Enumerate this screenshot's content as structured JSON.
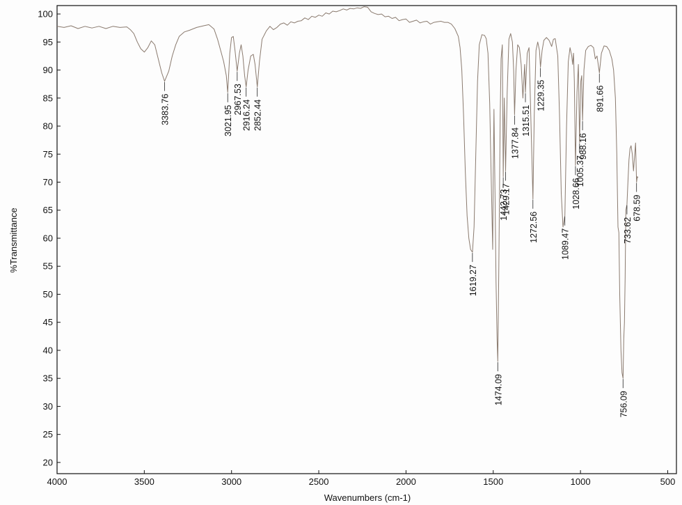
{
  "chart_data": {
    "type": "line",
    "title": "",
    "xlabel": "Wavenumbers (cm-1)",
    "ylabel": "%Transmittance",
    "xlim": [
      4000,
      450
    ],
    "ylim": [
      18,
      101.5
    ],
    "x_reversed": true,
    "grid": false,
    "line_color": "#8a7a6e",
    "x_ticks": [
      4000,
      3500,
      3000,
      2500,
      2000,
      1500,
      1000,
      500
    ],
    "y_ticks": [
      100,
      95,
      90,
      85,
      80,
      75,
      70,
      65,
      60,
      55,
      50,
      45,
      40,
      35,
      30,
      25,
      20
    ],
    "series": [
      {
        "points": [
          [
            4000,
            97.8
          ],
          [
            3960,
            97.6
          ],
          [
            3920,
            97.9
          ],
          [
            3880,
            97.4
          ],
          [
            3840,
            97.8
          ],
          [
            3800,
            97.5
          ],
          [
            3760,
            97.8
          ],
          [
            3720,
            97.4
          ],
          [
            3680,
            97.8
          ],
          [
            3640,
            97.6
          ],
          [
            3600,
            97.7
          ],
          [
            3580,
            97.2
          ],
          [
            3560,
            96.5
          ],
          [
            3540,
            95.0
          ],
          [
            3520,
            93.8
          ],
          [
            3500,
            93.2
          ],
          [
            3480,
            94.0
          ],
          [
            3460,
            95.2
          ],
          [
            3440,
            94.5
          ],
          [
            3420,
            92.0
          ],
          [
            3400,
            89.5
          ],
          [
            3383.76,
            88.0
          ],
          [
            3360,
            89.8
          ],
          [
            3340,
            92.5
          ],
          [
            3320,
            94.5
          ],
          [
            3300,
            96.0
          ],
          [
            3270,
            96.8
          ],
          [
            3240,
            97.1
          ],
          [
            3200,
            97.6
          ],
          [
            3160,
            97.9
          ],
          [
            3130,
            98.1
          ],
          [
            3100,
            97.3
          ],
          [
            3080,
            95.5
          ],
          [
            3060,
            93.2
          ],
          [
            3045,
            91.5
          ],
          [
            3030,
            89.0
          ],
          [
            3021.95,
            86.0
          ],
          [
            3010,
            93.0
          ],
          [
            3000,
            95.8
          ],
          [
            2990,
            96.0
          ],
          [
            2980,
            93.5
          ],
          [
            2967.53,
            89.8
          ],
          [
            2955,
            93.0
          ],
          [
            2945,
            94.5
          ],
          [
            2935,
            92.5
          ],
          [
            2925,
            89.0
          ],
          [
            2916.24,
            87.0
          ],
          [
            2905,
            90.0
          ],
          [
            2890,
            92.5
          ],
          [
            2875,
            92.8
          ],
          [
            2865,
            91.0
          ],
          [
            2852.44,
            87.0
          ],
          [
            2840,
            91.5
          ],
          [
            2825,
            95.5
          ],
          [
            2800,
            97.0
          ],
          [
            2780,
            97.8
          ],
          [
            2760,
            97.2
          ],
          [
            2740,
            97.6
          ],
          [
            2720,
            98.2
          ],
          [
            2700,
            98.4
          ],
          [
            2680,
            98.0
          ],
          [
            2660,
            98.6
          ],
          [
            2640,
            98.4
          ],
          [
            2620,
            98.7
          ],
          [
            2600,
            98.8
          ],
          [
            2580,
            99.3
          ],
          [
            2560,
            99.0
          ],
          [
            2540,
            99.6
          ],
          [
            2520,
            99.4
          ],
          [
            2500,
            99.8
          ],
          [
            2480,
            99.6
          ],
          [
            2460,
            100.2
          ],
          [
            2440,
            100.0
          ],
          [
            2420,
            100.5
          ],
          [
            2400,
            100.4
          ],
          [
            2380,
            100.6
          ],
          [
            2360,
            100.9
          ],
          [
            2340,
            100.7
          ],
          [
            2320,
            101.0
          ],
          [
            2300,
            100.9
          ],
          [
            2280,
            101.1
          ],
          [
            2260,
            101.0
          ],
          [
            2240,
            101.3
          ],
          [
            2220,
            101.2
          ],
          [
            2200,
            100.4
          ],
          [
            2180,
            100.1
          ],
          [
            2160,
            99.9
          ],
          [
            2140,
            100.0
          ],
          [
            2120,
            99.5
          ],
          [
            2100,
            99.6
          ],
          [
            2080,
            99.2
          ],
          [
            2060,
            99.4
          ],
          [
            2040,
            98.8
          ],
          [
            2020,
            99.0
          ],
          [
            2000,
            99.1
          ],
          [
            1980,
            98.5
          ],
          [
            1960,
            98.7
          ],
          [
            1940,
            98.9
          ],
          [
            1920,
            98.4
          ],
          [
            1900,
            98.6
          ],
          [
            1880,
            98.7
          ],
          [
            1860,
            98.2
          ],
          [
            1840,
            98.5
          ],
          [
            1820,
            98.6
          ],
          [
            1800,
            98.7
          ],
          [
            1780,
            98.5
          ],
          [
            1760,
            98.5
          ],
          [
            1740,
            98.2
          ],
          [
            1720,
            97.4
          ],
          [
            1700,
            96.0
          ],
          [
            1690,
            94.0
          ],
          [
            1680,
            90.0
          ],
          [
            1670,
            82.0
          ],
          [
            1660,
            72.0
          ],
          [
            1650,
            64.0
          ],
          [
            1640,
            60.0
          ],
          [
            1630,
            58.0
          ],
          [
            1619.27,
            57.5
          ],
          [
            1610,
            62.0
          ],
          [
            1600,
            75.0
          ],
          [
            1590,
            88.0
          ],
          [
            1580,
            94.5
          ],
          [
            1565,
            96.3
          ],
          [
            1550,
            96.2
          ],
          [
            1540,
            95.6
          ],
          [
            1530,
            93.0
          ],
          [
            1520,
            84.0
          ],
          [
            1510,
            68.0
          ],
          [
            1503,
            58.0
          ],
          [
            1500,
            72.0
          ],
          [
            1496,
            83.0
          ],
          [
            1490,
            68.0
          ],
          [
            1484,
            52.0
          ],
          [
            1478,
            42.0
          ],
          [
            1474.09,
            38.0
          ],
          [
            1468,
            55.0
          ],
          [
            1460,
            82.0
          ],
          [
            1455,
            92.0
          ],
          [
            1448,
            94.5
          ],
          [
            1442.73,
            71.0
          ],
          [
            1437,
            85.0
          ],
          [
            1429.17,
            72.0
          ],
          [
            1420,
            86.0
          ],
          [
            1410,
            95.5
          ],
          [
            1400,
            96.5
          ],
          [
            1390,
            95.0
          ],
          [
            1383,
            90.0
          ],
          [
            1377.84,
            82.0
          ],
          [
            1370,
            90.0
          ],
          [
            1360,
            94.5
          ],
          [
            1350,
            94.0
          ],
          [
            1340,
            91.0
          ],
          [
            1330,
            85.0
          ],
          [
            1325,
            88.0
          ],
          [
            1320,
            91.0
          ],
          [
            1315.51,
            86.0
          ],
          [
            1305,
            93.0
          ],
          [
            1295,
            94.0
          ],
          [
            1285,
            82.0
          ],
          [
            1272.56,
            67.0
          ],
          [
            1265,
            82.0
          ],
          [
            1255,
            93.5
          ],
          [
            1245,
            95.0
          ],
          [
            1235,
            93.5
          ],
          [
            1229.35,
            90.5
          ],
          [
            1220,
            93.5
          ],
          [
            1210,
            95.3
          ],
          [
            1195,
            95.8
          ],
          [
            1180,
            95.3
          ],
          [
            1165,
            94.2
          ],
          [
            1155,
            95.5
          ],
          [
            1145,
            95.6
          ],
          [
            1130,
            92.5
          ],
          [
            1120,
            82.0
          ],
          [
            1110,
            68.0
          ],
          [
            1100,
            62.0
          ],
          [
            1089.47,
            64.0
          ],
          [
            1080,
            80.0
          ],
          [
            1070,
            91.5
          ],
          [
            1060,
            94.0
          ],
          [
            1050,
            92.5
          ],
          [
            1045,
            91.0
          ],
          [
            1040,
            93.0
          ],
          [
            1035,
            88.0
          ],
          [
            1028.66,
            73.0
          ],
          [
            1020,
            86.0
          ],
          [
            1012,
            91.0
          ],
          [
            1005.37,
            77.0
          ],
          [
            998,
            88.0
          ],
          [
            993,
            89.0
          ],
          [
            988.16,
            81.0
          ],
          [
            980,
            90.0
          ],
          [
            970,
            93.5
          ],
          [
            955,
            94.2
          ],
          [
            940,
            94.4
          ],
          [
            925,
            94.0
          ],
          [
            915,
            92.0
          ],
          [
            905,
            92.5
          ],
          [
            891.66,
            89.5
          ],
          [
            880,
            93.0
          ],
          [
            865,
            94.3
          ],
          [
            850,
            94.2
          ],
          [
            835,
            93.5
          ],
          [
            820,
            92.0
          ],
          [
            810,
            90.0
          ],
          [
            800,
            85.0
          ],
          [
            792,
            75.0
          ],
          [
            785,
            62.0
          ],
          [
            780,
            61.0
          ],
          [
            775,
            50.0
          ],
          [
            768,
            40.0
          ],
          [
            762,
            36.0
          ],
          [
            756.09,
            35.0
          ],
          [
            752,
            42.0
          ],
          [
            748,
            45.0
          ],
          [
            744,
            53.0
          ],
          [
            740,
            65.0
          ],
          [
            733.62,
            66.0
          ],
          [
            728,
            70.0
          ],
          [
            722,
            74.0
          ],
          [
            716,
            76.0
          ],
          [
            710,
            76.5
          ],
          [
            703,
            75.0
          ],
          [
            696,
            72.0
          ],
          [
            690,
            74.5
          ],
          [
            684,
            77.0
          ],
          [
            678.59,
            70.0
          ],
          [
            674,
            71.0
          ],
          [
            670,
            70.8
          ]
        ]
      }
    ],
    "peak_labels": [
      {
        "x": 3383.76,
        "text": "3383.76"
      },
      {
        "x": 3021.95,
        "text": "3021.95"
      },
      {
        "x": 2967.53,
        "text": "2967.53"
      },
      {
        "x": 2916.24,
        "text": "2916.24"
      },
      {
        "x": 2852.44,
        "text": "2852.44"
      },
      {
        "x": 1619.27,
        "text": "1619.27"
      },
      {
        "x": 1474.09,
        "text": "1474.09"
      },
      {
        "x": 1442.73,
        "text": "1442.73"
      },
      {
        "x": 1429.17,
        "text": "1429.17"
      },
      {
        "x": 1377.84,
        "text": "1377.84"
      },
      {
        "x": 1315.51,
        "text": "1315.51"
      },
      {
        "x": 1272.56,
        "text": "1272.56"
      },
      {
        "x": 1229.35,
        "text": "1229.35"
      },
      {
        "x": 1089.47,
        "text": "1089.47"
      },
      {
        "x": 1028.66,
        "text": "1028.66"
      },
      {
        "x": 1005.37,
        "text": "1005.37"
      },
      {
        "x": 988.16,
        "text": "988.16"
      },
      {
        "x": 891.66,
        "text": "891.66"
      },
      {
        "x": 756.09,
        "text": "756.09"
      },
      {
        "x": 733.62,
        "text": "733.62"
      },
      {
        "x": 678.59,
        "text": "678.59"
      }
    ]
  }
}
